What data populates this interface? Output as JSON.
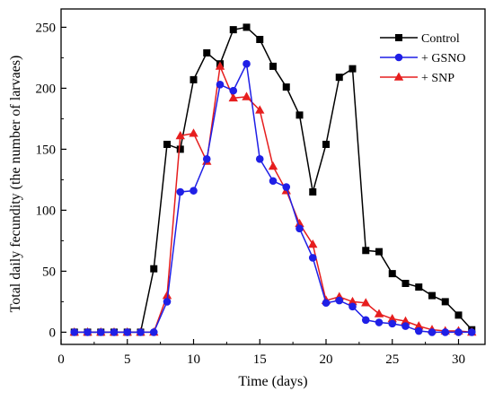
{
  "chart_data": {
    "type": "line",
    "title": "",
    "xlabel": "Time (days)",
    "ylabel": "Total daily fecundity (the number of larvaes)",
    "xlim": [
      0,
      32
    ],
    "ylim": [
      -10,
      265
    ],
    "xticks": [
      0,
      5,
      10,
      15,
      20,
      25,
      30
    ],
    "yticks": [
      0,
      50,
      100,
      150,
      200,
      250
    ],
    "grid": false,
    "legend_position": "top-right",
    "series": [
      {
        "name": "Control",
        "color": "#000000",
        "marker": "square",
        "x": [
          1,
          2,
          3,
          4,
          5,
          6,
          7,
          8,
          9,
          10,
          11,
          12,
          13,
          14,
          15,
          16,
          17,
          18,
          19,
          20,
          21,
          22,
          23,
          24,
          25,
          26,
          27,
          28,
          29,
          30,
          31
        ],
        "y": [
          0,
          0,
          0,
          0,
          0,
          0,
          52,
          154,
          150,
          207,
          229,
          220,
          248,
          250,
          240,
          218,
          201,
          178,
          115,
          154,
          209,
          216,
          67,
          66,
          48,
          40,
          37,
          30,
          25,
          14,
          2
        ]
      },
      {
        "name": "+ GSNO",
        "color": "#1f1fe6",
        "marker": "circle",
        "x": [
          1,
          2,
          3,
          4,
          5,
          6,
          7,
          8,
          9,
          10,
          11,
          12,
          13,
          14,
          15,
          16,
          17,
          18,
          19,
          20,
          21,
          22,
          23,
          24,
          25,
          26,
          27,
          28,
          29,
          30,
          31
        ],
        "y": [
          0,
          0,
          0,
          0,
          0,
          0,
          0,
          25,
          115,
          116,
          142,
          203,
          198,
          220,
          142,
          124,
          119,
          85,
          61,
          24,
          26,
          21,
          10,
          8,
          7,
          5,
          1,
          0,
          0,
          0,
          0
        ]
      },
      {
        "name": "+ SNP",
        "color": "#e61e1e",
        "marker": "triangle",
        "x": [
          1,
          2,
          3,
          4,
          5,
          6,
          7,
          8,
          9,
          10,
          11,
          12,
          13,
          14,
          15,
          16,
          17,
          18,
          19,
          20,
          21,
          22,
          23,
          24,
          25,
          26,
          27,
          28,
          29,
          30,
          31
        ],
        "y": [
          0,
          0,
          0,
          0,
          0,
          0,
          0,
          30,
          161,
          163,
          140,
          218,
          192,
          193,
          182,
          136,
          116,
          89,
          72,
          26,
          29,
          25,
          24,
          15,
          11,
          9,
          5,
          2,
          1,
          1,
          0
        ]
      }
    ]
  }
}
